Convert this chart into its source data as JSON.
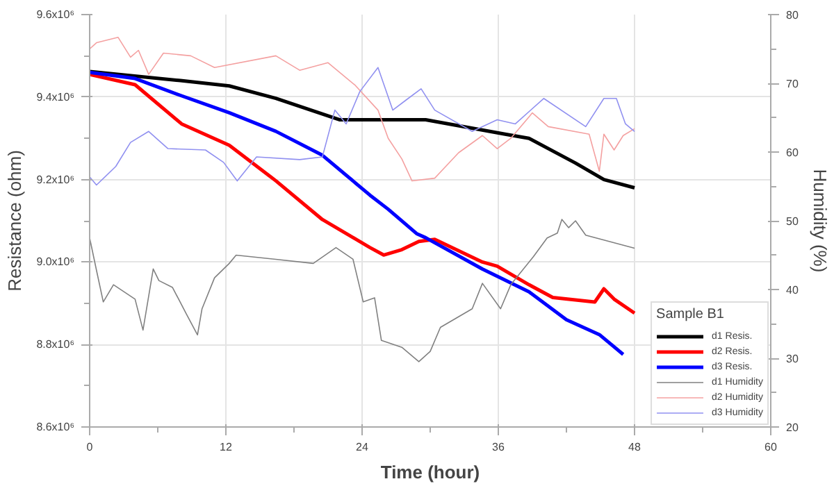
{
  "chart_data": {
    "type": "line",
    "xlabel": "Time (hour)",
    "ylabel": "Resistance (ohm)",
    "y2label": "Humidity (%)",
    "legend_title": "Sample B1",
    "legend": "bottom right",
    "grid": true,
    "line_style": "solid",
    "xlim": [
      0,
      60
    ],
    "xticks": [
      0,
      12,
      24,
      36,
      48,
      60
    ],
    "ylim": [
      8600000,
      9600000
    ],
    "yticks": [
      {
        "value": 8600000,
        "label": "8.6x10⁶"
      },
      {
        "value": 8800000,
        "label": "8.8x10⁶"
      },
      {
        "value": 9000000,
        "label": "9.0x10⁶"
      },
      {
        "value": 9200000,
        "label": "9.2x10⁶"
      },
      {
        "value": 9400000,
        "label": "9.4x10⁶"
      },
      {
        "value": 9600000,
        "label": "9.6x10⁶"
      }
    ],
    "y2lim": [
      20,
      80
    ],
    "y2ticks": [
      20,
      30,
      40,
      50,
      60,
      70,
      80
    ],
    "series": [
      {
        "name": "d1 Resis.",
        "color": "#000000",
        "x": [
          0,
          8,
          12.3,
          16.4,
          22,
          28.8,
          29.6,
          36.6,
          38.7,
          42.8,
          45.3,
          48
        ],
        "values": [
          9462000,
          9440000,
          9427000,
          9397000,
          9345000,
          9345000,
          9345000,
          9310000,
          9300000,
          9240000,
          9200000,
          9180000
        ]
      },
      {
        "name": "d2 Resis.",
        "color": "#ff0000",
        "x": [
          0,
          4,
          8.1,
          12.3,
          16.4,
          20.5,
          24.7,
          25.9,
          27.5,
          29,
          30.4,
          34.6,
          35.9,
          38.7,
          40.8,
          44.5,
          45.3,
          46.2,
          48
        ],
        "values": [
          9455000,
          9430000,
          9335000,
          9283000,
          9197000,
          9103000,
          9035000,
          9017000,
          9030000,
          9050000,
          9055000,
          9000000,
          8990000,
          8945000,
          8914000,
          8903000,
          8935000,
          8910000,
          8876000
        ]
      },
      {
        "name": "d3 Resis.",
        "color": "#0000ff",
        "x": [
          0,
          4,
          8.1,
          12.3,
          16.4,
          20.5,
          24.7,
          26.3,
          28.8,
          29.6,
          34.6,
          38.7,
          42,
          44.9,
          47
        ],
        "values": [
          9460000,
          9445000,
          9403000,
          9362000,
          9317000,
          9259000,
          9162000,
          9128000,
          9069000,
          9059000,
          8983000,
          8928000,
          8860000,
          8824000,
          8776000
        ]
      },
      {
        "name": "d1 Humidity",
        "color": "#808080",
        "axis": "y2",
        "x": [
          0,
          0.6,
          1.2,
          2.1,
          4,
          4.7,
          5.6,
          6.1,
          7.3,
          8.5,
          9.5,
          9.9,
          11,
          12.3,
          12.9,
          16.4,
          19.7,
          21.7,
          23.2,
          24.1,
          25.1,
          25.7,
          27.5,
          29,
          30,
          30.9,
          33.7,
          34.6,
          36.2,
          37.1,
          39.1,
          40.3,
          41.2,
          41.6,
          42.2,
          42.8,
          43.7,
          48
        ],
        "values": [
          47.5,
          42.8,
          38.2,
          40.7,
          38.6,
          34.1,
          43,
          41.3,
          40.3,
          36.5,
          33.4,
          37.2,
          41.7,
          43.8,
          45,
          44.4,
          43.8,
          46.1,
          44.4,
          38.2,
          38.8,
          32.6,
          31.6,
          29.5,
          31,
          34.5,
          37.2,
          40.9,
          37.2,
          40.7,
          44.8,
          47.5,
          48.2,
          50.2,
          49,
          50,
          47.9,
          46
        ]
      },
      {
        "name": "d2 Humidity",
        "color": "#f4a0a0",
        "axis": "y2",
        "x": [
          0,
          0.6,
          2.5,
          3.6,
          4.3,
          5.2,
          6.5,
          8.9,
          11,
          16.4,
          18.5,
          21,
          23.4,
          25.4,
          26.3,
          27.5,
          28.4,
          30.4,
          32.5,
          34.6,
          35.9,
          37.1,
          39,
          40.4,
          44,
          44.9,
          45.3,
          46.2,
          47,
          48
        ],
        "values": [
          75,
          75.9,
          76.7,
          73.8,
          74.8,
          71.3,
          74.4,
          74,
          72.3,
          74,
          71.9,
          73,
          69.7,
          66.1,
          62,
          59,
          55.8,
          56.2,
          59.9,
          62.4,
          60.5,
          62,
          65.7,
          63.7,
          62.6,
          57.2,
          62.6,
          60.3,
          62.4,
          63.4
        ]
      },
      {
        "name": "d3 Humidity",
        "color": "#9090f0",
        "axis": "y2",
        "x": [
          0,
          0.6,
          2.3,
          3.6,
          5.2,
          6.9,
          10.2,
          11.8,
          13,
          14.7,
          18.5,
          20.5,
          21.6,
          22.6,
          23.8,
          25.4,
          26.7,
          27.9,
          29.2,
          30.4,
          33.7,
          35.9,
          37.5,
          40,
          43.7,
          45.3,
          46.4,
          47.2,
          48
        ],
        "values": [
          56.4,
          55.2,
          57.9,
          61.4,
          63,
          60.5,
          60.3,
          58.5,
          55.8,
          59.3,
          58.9,
          59.3,
          66.1,
          64.1,
          68.8,
          72.3,
          66.1,
          67.6,
          69.2,
          66.1,
          63,
          64.7,
          64.1,
          67.8,
          63.7,
          67.8,
          67.8,
          64.1,
          63
        ]
      }
    ]
  }
}
